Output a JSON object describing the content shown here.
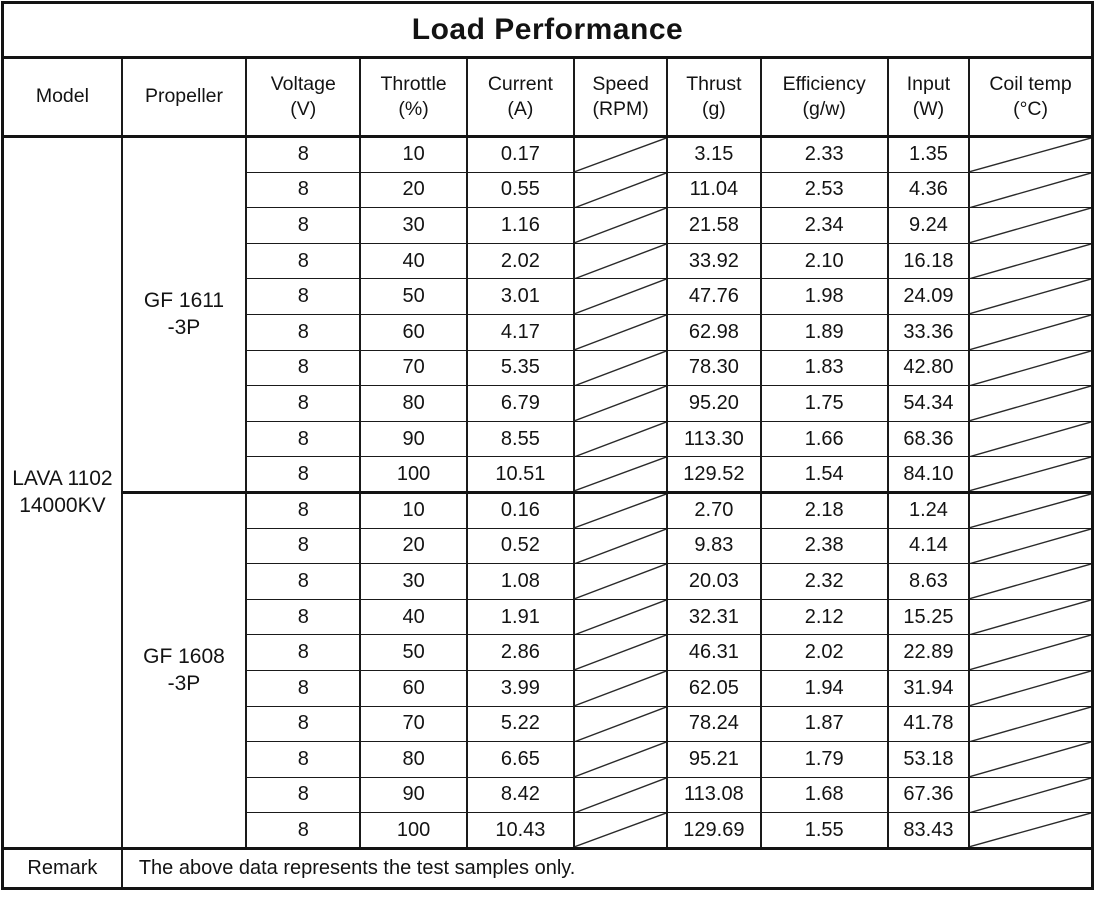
{
  "colors": {
    "background": "#ffffff",
    "border": "#131313",
    "text": "#131313"
  },
  "table": {
    "title": "Load Performance",
    "headers": [
      {
        "line1": "Model",
        "line2": ""
      },
      {
        "line1": "Propeller",
        "line2": ""
      },
      {
        "line1": "Voltage",
        "line2": "(V)"
      },
      {
        "line1": "Throttle",
        "line2": "(%)"
      },
      {
        "line1": "Current",
        "line2": "(A)"
      },
      {
        "line1": "Speed",
        "line2": "(RPM)"
      },
      {
        "line1": "Thrust",
        "line2": "(g)"
      },
      {
        "line1": "Efficiency",
        "line2": "(g/w)"
      },
      {
        "line1": "Input",
        "line2": "(W)"
      },
      {
        "line1": "Coil temp",
        "line2": "(°C)"
      }
    ],
    "model": {
      "line1": "LAVA 1102",
      "line2": "14000KV"
    },
    "empty_cell_meaning": "diagonal slash, no data recorded",
    "groups": [
      {
        "propeller": {
          "line1": "GF 1611",
          "line2": "-3P"
        },
        "rows": [
          {
            "voltage": "8",
            "throttle": "10",
            "current": "0.17",
            "thrust": "3.15",
            "efficiency": "2.33",
            "input": "1.35"
          },
          {
            "voltage": "8",
            "throttle": "20",
            "current": "0.55",
            "thrust": "11.04",
            "efficiency": "2.53",
            "input": "4.36"
          },
          {
            "voltage": "8",
            "throttle": "30",
            "current": "1.16",
            "thrust": "21.58",
            "efficiency": "2.34",
            "input": "9.24"
          },
          {
            "voltage": "8",
            "throttle": "40",
            "current": "2.02",
            "thrust": "33.92",
            "efficiency": "2.10",
            "input": "16.18"
          },
          {
            "voltage": "8",
            "throttle": "50",
            "current": "3.01",
            "thrust": "47.76",
            "efficiency": "1.98",
            "input": "24.09"
          },
          {
            "voltage": "8",
            "throttle": "60",
            "current": "4.17",
            "thrust": "62.98",
            "efficiency": "1.89",
            "input": "33.36"
          },
          {
            "voltage": "8",
            "throttle": "70",
            "current": "5.35",
            "thrust": "78.30",
            "efficiency": "1.83",
            "input": "42.80"
          },
          {
            "voltage": "8",
            "throttle": "80",
            "current": "6.79",
            "thrust": "95.20",
            "efficiency": "1.75",
            "input": "54.34"
          },
          {
            "voltage": "8",
            "throttle": "90",
            "current": "8.55",
            "thrust": "113.30",
            "efficiency": "1.66",
            "input": "68.36"
          },
          {
            "voltage": "8",
            "throttle": "100",
            "current": "10.51",
            "thrust": "129.52",
            "efficiency": "1.54",
            "input": "84.10"
          }
        ]
      },
      {
        "propeller": {
          "line1": "GF 1608",
          "line2": "-3P"
        },
        "rows": [
          {
            "voltage": "8",
            "throttle": "10",
            "current": "0.16",
            "thrust": "2.70",
            "efficiency": "2.18",
            "input": "1.24"
          },
          {
            "voltage": "8",
            "throttle": "20",
            "current": "0.52",
            "thrust": "9.83",
            "efficiency": "2.38",
            "input": "4.14"
          },
          {
            "voltage": "8",
            "throttle": "30",
            "current": "1.08",
            "thrust": "20.03",
            "efficiency": "2.32",
            "input": "8.63"
          },
          {
            "voltage": "8",
            "throttle": "40",
            "current": "1.91",
            "thrust": "32.31",
            "efficiency": "2.12",
            "input": "15.25"
          },
          {
            "voltage": "8",
            "throttle": "50",
            "current": "2.86",
            "thrust": "46.31",
            "efficiency": "2.02",
            "input": "22.89"
          },
          {
            "voltage": "8",
            "throttle": "60",
            "current": "3.99",
            "thrust": "62.05",
            "efficiency": "1.94",
            "input": "31.94"
          },
          {
            "voltage": "8",
            "throttle": "70",
            "current": "5.22",
            "thrust": "78.24",
            "efficiency": "1.87",
            "input": "41.78"
          },
          {
            "voltage": "8",
            "throttle": "80",
            "current": "6.65",
            "thrust": "95.21",
            "efficiency": "1.79",
            "input": "53.18"
          },
          {
            "voltage": "8",
            "throttle": "90",
            "current": "8.42",
            "thrust": "113.08",
            "efficiency": "1.68",
            "input": "67.36"
          },
          {
            "voltage": "8",
            "throttle": "100",
            "current": "10.43",
            "thrust": "129.69",
            "efficiency": "1.55",
            "input": "83.43"
          }
        ]
      }
    ],
    "remark": {
      "label": "Remark",
      "text": "The above data represents the test samples only."
    }
  }
}
